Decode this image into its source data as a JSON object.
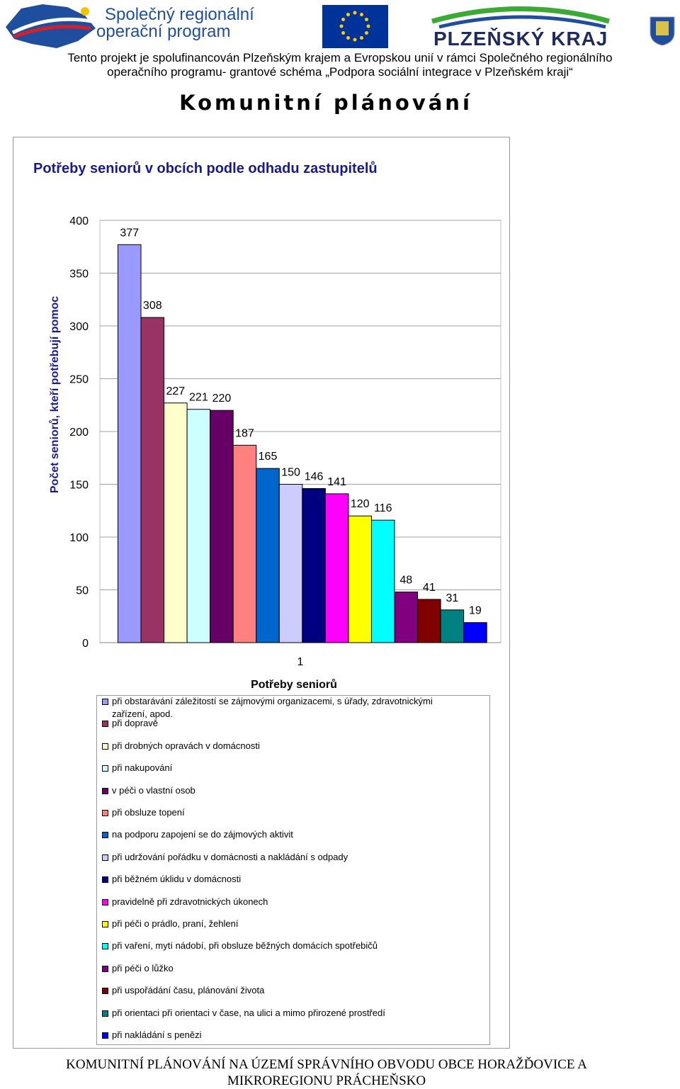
{
  "header": {
    "logo_left_lines": [
      "Společný regionální",
      "operační program"
    ],
    "logo_right": "PLZEŇSKÝ KRAJ",
    "funding_lines": [
      "Tento projekt je spolufinancován Plzeňským krajem a Evropskou unií v rámci Společného regionálního",
      "operačního programu- grantové schéma „Podpora sociální integrace v Plzeňském kraji“"
    ],
    "title": "Komunitní plánování"
  },
  "chart_data": {
    "type": "bar",
    "title": "Potřeby seniorů v obcích podle  odhadu zastupitelů",
    "y_label": "Počet seniorů, kteří potřebují pomoc",
    "x_label": "Potřeby seniorů",
    "categories": [
      "1"
    ],
    "ylim": [
      0,
      400
    ],
    "yticks": [
      0,
      50,
      100,
      150,
      200,
      250,
      300,
      350,
      400
    ],
    "grid": true,
    "series": [
      {
        "name": "při obstarávání záležitostí se zájmovými organizacemi, s úřady, zdravotnickými zařízení, apod.",
        "color": "#9999ff",
        "values": [
          377
        ]
      },
      {
        "name": "při dopravě",
        "color": "#993366",
        "values": [
          308
        ]
      },
      {
        "name": "při drobných opravách v domácnosti",
        "color": "#ffffcc",
        "values": [
          227
        ]
      },
      {
        "name": "při nakupování",
        "color": "#ccffff",
        "values": [
          221
        ]
      },
      {
        "name": "v péči o vlastní osob",
        "color": "#660066",
        "values": [
          220
        ]
      },
      {
        "name": "při obsluze topení",
        "color": "#ff8080",
        "values": [
          187
        ]
      },
      {
        "name": "na podporu zapojení se do zájmových aktivit",
        "color": "#0066cc",
        "values": [
          165
        ]
      },
      {
        "name": "při udržování pořádku v domácnosti a nakládání s odpady",
        "color": "#ccccff",
        "values": [
          150
        ]
      },
      {
        "name": "při  běžném úklidu v domácnosti",
        "color": "#000080",
        "values": [
          146
        ]
      },
      {
        "name": "pravidelně při zdravotnických úkonech",
        "color": "#ff00ff",
        "values": [
          141
        ]
      },
      {
        "name": "při péči o prádlo, praní, žehlení",
        "color": "#ffff00",
        "values": [
          120
        ]
      },
      {
        "name": "při vaření, mytí nádobí, při obsluze běžných domácích spotřebičů",
        "color": "#00ffff",
        "values": [
          116
        ]
      },
      {
        "name": "při péči o lůžko",
        "color": "#800080",
        "values": [
          48
        ]
      },
      {
        "name": "při uspořádání času, plánování života",
        "color": "#800000",
        "values": [
          41
        ]
      },
      {
        "name": "při orientaci při orientaci v čase, na ulici a mimo přirozené prostředí",
        "color": "#008080",
        "values": [
          31
        ]
      },
      {
        "name": "při nakládání s penězi",
        "color": "#0000ff",
        "values": [
          19
        ]
      }
    ]
  },
  "footer": {
    "lines": [
      "KOMUNITNÍ PLÁNOVÁNÍ NA ÚZEMÍ SPRÁVNÍHO OBVODU OBCE HORAŽĎOVICE A",
      "MIKROREGIONU PRÁCHEŇSKO"
    ]
  }
}
